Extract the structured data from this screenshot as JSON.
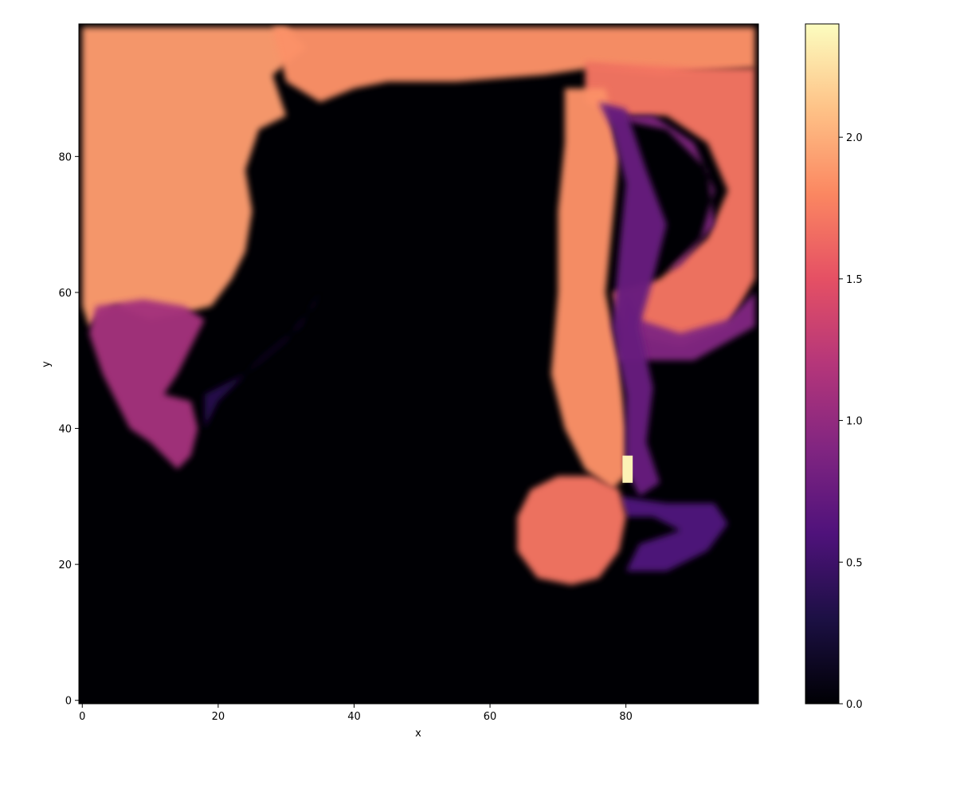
{
  "chart_data": {
    "type": "heatmap",
    "title": "",
    "xlabel": "x",
    "ylabel": "y",
    "xlim": [
      -0.5,
      99.5
    ],
    "ylim": [
      -0.5,
      99.5
    ],
    "grid_size": [
      100,
      100
    ],
    "origin": "lower",
    "x_ticks": [
      0,
      20,
      40,
      60,
      80
    ],
    "y_ticks": [
      0,
      20,
      40,
      60,
      80
    ],
    "x_tick_labels": [
      "0",
      "20",
      "40",
      "60",
      "80"
    ],
    "y_tick_labels": [
      "0",
      "20",
      "40",
      "60",
      "80"
    ],
    "colormap": "magma",
    "colorbar": {
      "vmin": 0.0,
      "vmax": 2.4,
      "ticks": [
        0.0,
        0.5,
        1.0,
        1.5,
        2.0
      ],
      "tick_labels": [
        "0.0",
        "0.5",
        "1.0",
        "1.5",
        "2.0"
      ]
    },
    "colormap_stops": [
      "#000004",
      "#1c1044",
      "#4f127b",
      "#812581",
      "#b5367a",
      "#e55064",
      "#fb8761",
      "#fec287",
      "#fcfdbf"
    ],
    "field_regions": [
      {
        "feature": "upper-left plume",
        "x_range": [
          0,
          35
        ],
        "y_range": [
          55,
          99
        ],
        "value": 1.9
      },
      {
        "feature": "top band",
        "x_range": [
          25,
          99
        ],
        "y_range": [
          90,
          99
        ],
        "value": 1.85
      },
      {
        "feature": "right swirl",
        "x_range": [
          70,
          99
        ],
        "y_range": [
          50,
          95
        ],
        "value": 1.7
      },
      {
        "feature": "descending column",
        "x_range": [
          69,
          80
        ],
        "y_range": [
          30,
          88
        ],
        "value": 1.85
      },
      {
        "feature": "lower bulb",
        "x_range": [
          64,
          79
        ],
        "y_range": [
          17,
          33
        ],
        "value": 1.7
      },
      {
        "feature": "left fingers",
        "x_range": [
          2,
          25
        ],
        "y_range": [
          33,
          60
        ],
        "value": 1.1
      },
      {
        "feature": "peak near x=80",
        "x_range": [
          79,
          81
        ],
        "y_range": [
          32,
          36
        ],
        "value": 2.35
      }
    ]
  }
}
